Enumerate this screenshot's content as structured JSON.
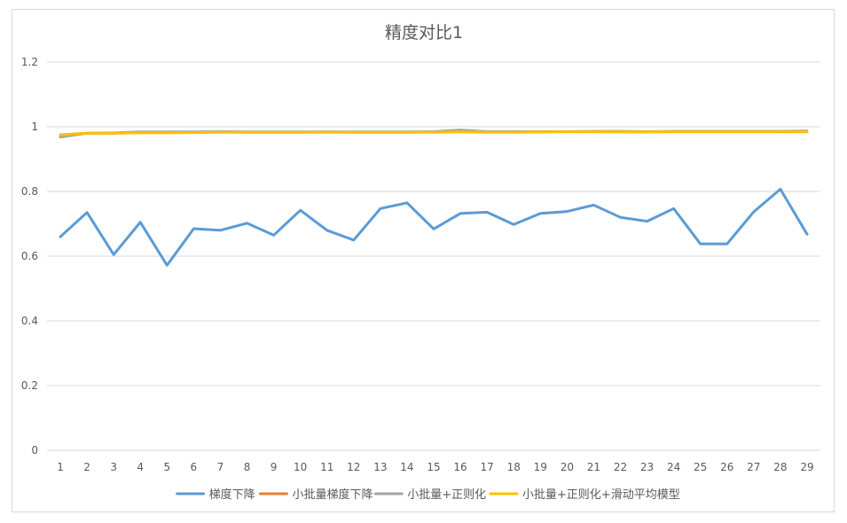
{
  "chart_data": {
    "type": "line",
    "title": "精度对比1",
    "xlabel": "",
    "ylabel": "",
    "categories": [
      "1",
      "2",
      "3",
      "4",
      "5",
      "6",
      "7",
      "8",
      "9",
      "10",
      "11",
      "12",
      "13",
      "14",
      "15",
      "16",
      "17",
      "18",
      "19",
      "20",
      "21",
      "22",
      "23",
      "24",
      "25",
      "26",
      "27",
      "28",
      "29"
    ],
    "ylim": [
      0,
      1.2
    ],
    "yticks": [
      "0",
      "0.2",
      "0.4",
      "0.6",
      "0.8",
      "1",
      "1.2"
    ],
    "ytick_values": [
      0,
      0.2,
      0.4,
      0.6,
      0.8,
      1.0,
      1.2
    ],
    "grid": true,
    "legend_position": "bottom",
    "series": [
      {
        "name": "梯度下降",
        "color": "#5b9bd5",
        "values": [
          0.66,
          0.735,
          0.605,
          0.705,
          0.572,
          0.685,
          0.68,
          0.702,
          0.665,
          0.742,
          0.68,
          0.65,
          0.747,
          0.765,
          0.684,
          0.732,
          0.736,
          0.698,
          0.732,
          0.738,
          0.758,
          0.72,
          0.708,
          0.747,
          0.638,
          0.638,
          0.737,
          0.807,
          0.668
        ]
      },
      {
        "name": "小批量梯度下降",
        "color": "#ed7d31",
        "values": [
          0.975,
          0.98,
          0.98,
          0.982,
          0.982,
          0.983,
          0.984,
          0.983,
          0.983,
          0.983,
          0.984,
          0.983,
          0.983,
          0.983,
          0.984,
          0.985,
          0.984,
          0.984,
          0.984,
          0.985,
          0.985,
          0.984,
          0.984,
          0.985,
          0.985,
          0.985,
          0.985,
          0.985,
          0.985
        ]
      },
      {
        "name": "小批量+正则化",
        "color": "#a5a5a5",
        "values": [
          0.968,
          0.98,
          0.981,
          0.984,
          0.984,
          0.984,
          0.985,
          0.984,
          0.984,
          0.984,
          0.984,
          0.984,
          0.984,
          0.984,
          0.985,
          0.99,
          0.985,
          0.985,
          0.985,
          0.985,
          0.986,
          0.986,
          0.985,
          0.986,
          0.986,
          0.986,
          0.986,
          0.986,
          0.987
        ]
      },
      {
        "name": "小批量+正则化+滑动平均模型",
        "color": "#ffc000",
        "values": [
          0.975,
          0.98,
          0.98,
          0.981,
          0.981,
          0.982,
          0.983,
          0.983,
          0.983,
          0.983,
          0.983,
          0.983,
          0.983,
          0.983,
          0.983,
          0.984,
          0.983,
          0.983,
          0.984,
          0.984,
          0.984,
          0.984,
          0.984,
          0.984,
          0.984,
          0.984,
          0.984,
          0.984,
          0.984
        ]
      }
    ]
  }
}
